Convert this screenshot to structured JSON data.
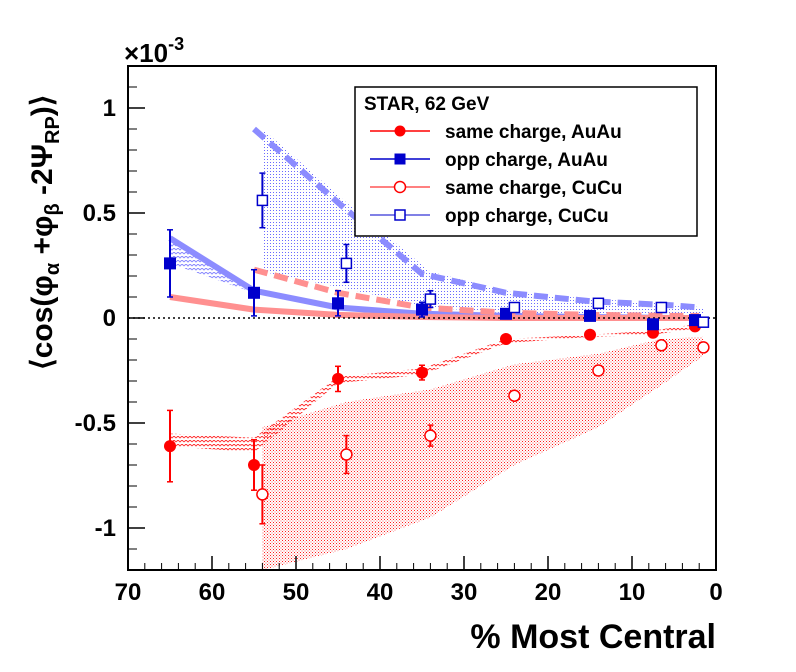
{
  "chart_data": {
    "type": "scatter",
    "title": "",
    "xlabel": "% Most Central",
    "ylabel_parts": [
      "⟨cos(φ",
      "α",
      " +φ",
      "β",
      " -2Ψ",
      "RP",
      ")⟩"
    ],
    "multiplier": "×10",
    "multiplier_exp": "-3",
    "xlim": [
      70,
      0
    ],
    "ylim": [
      -1.2,
      1.2
    ],
    "x_ticks": [
      70,
      60,
      50,
      40,
      30,
      20,
      10,
      0
    ],
    "x_tick_labels": [
      "70",
      "60",
      "50",
      "40",
      "30",
      "20",
      "10",
      "0"
    ],
    "y_ticks": [
      -1,
      -0.5,
      0,
      0.5,
      1
    ],
    "y_tick_labels": [
      "-1",
      "-0.5",
      "0",
      "0.5",
      "1"
    ],
    "legend": {
      "header": "STAR,  62 GeV",
      "entries": [
        "same charge, AuAu",
        "opp charge, AuAu",
        "same charge, CuCu",
        "opp charge, CuCu"
      ]
    },
    "colors": {
      "red": "#ff0000",
      "blue": "#0000cc",
      "light_red": "#ff9090",
      "light_blue": "#8c8cff"
    },
    "series": [
      {
        "name": "same charge, AuAu",
        "marker": "filled-circle",
        "color": "#ff0000",
        "x": [
          65,
          55,
          45,
          35,
          25,
          15,
          7.5,
          2.5
        ],
        "y": [
          -0.61,
          -0.7,
          -0.29,
          -0.26,
          -0.1,
          -0.08,
          -0.07,
          -0.04
        ],
        "err": [
          0.17,
          0.12,
          0.06,
          0.035,
          0.02,
          0.015,
          0.015,
          0.015
        ]
      },
      {
        "name": "opp charge, AuAu",
        "marker": "filled-square",
        "color": "#0000cc",
        "x": [
          65,
          55,
          45,
          35,
          25,
          15,
          7.5,
          2.5
        ],
        "y": [
          0.26,
          0.12,
          0.07,
          0.04,
          0.02,
          0.01,
          -0.03,
          -0.01
        ],
        "err": [
          0.16,
          0.11,
          0.06,
          0.035,
          0.02,
          0.015,
          0.015,
          0.015
        ]
      },
      {
        "name": "same charge, CuCu",
        "marker": "open-circle",
        "color": "#ff0000",
        "x": [
          54,
          44,
          34,
          24,
          14,
          6.5,
          1.5
        ],
        "y": [
          -0.84,
          -0.65,
          -0.56,
          -0.37,
          -0.25,
          -0.13,
          -0.14
        ],
        "err": [
          0.14,
          0.09,
          0.05,
          0.02,
          0.02,
          0.015,
          0.015
        ]
      },
      {
        "name": "opp charge, CuCu",
        "marker": "open-square",
        "color": "#0000cc",
        "x": [
          54,
          44,
          34,
          24,
          14,
          6.5,
          1.5
        ],
        "y": [
          0.56,
          0.26,
          0.09,
          0.05,
          0.07,
          0.05,
          -0.02
        ],
        "err": [
          0.13,
          0.09,
          0.04,
          0.02,
          0.02,
          0.015,
          0.015
        ]
      }
    ],
    "systematic_bands": [
      {
        "name": "AuAu opp charge band",
        "color": "#8c8cff",
        "pattern": "zigzag",
        "x": [
          65,
          55,
          45,
          35,
          25,
          15,
          7.5,
          2.5
        ],
        "upper": [
          0.38,
          0.13,
          0.06,
          0.03,
          0.02,
          0.01,
          0.005,
          0.0
        ],
        "lower": [
          0.26,
          0.12,
          0.05,
          0.02,
          0.01,
          0.005,
          0.0,
          0.0
        ]
      },
      {
        "name": "CuCu opp charge band",
        "color": "#7070ff",
        "pattern": "dots",
        "x": [
          54,
          44,
          34,
          24,
          14,
          6.5,
          1.5
        ],
        "upper": [
          0.9,
          0.55,
          0.22,
          0.12,
          0.09,
          0.07,
          0.05
        ],
        "lower": [
          0.22,
          0.14,
          0.05,
          0.02,
          0.02,
          0.02,
          0.02
        ]
      },
      {
        "name": "AuAu same charge band",
        "color": "#ff0000",
        "pattern": "zigzag",
        "x": [
          65,
          55,
          45,
          35,
          25,
          15,
          7.5,
          2.5
        ],
        "upper": [
          -0.55,
          -0.57,
          -0.28,
          -0.24,
          -0.1,
          -0.08,
          -0.06,
          -0.03
        ],
        "lower": [
          -0.61,
          -0.64,
          -0.31,
          -0.27,
          -0.12,
          -0.09,
          -0.08,
          -0.05
        ]
      },
      {
        "name": "CuCu same charge band",
        "color": "#ff3030",
        "pattern": "dots",
        "x": [
          54,
          44,
          34,
          24,
          14,
          6.5,
          1.5
        ],
        "upper": [
          -0.52,
          -0.4,
          -0.34,
          -0.22,
          -0.17,
          -0.1,
          -0.09
        ],
        "lower": [
          -1.2,
          -1.1,
          -0.95,
          -0.7,
          -0.52,
          -0.32,
          -0.18
        ]
      }
    ],
    "theory_curves": [
      {
        "name": "AuAu opp solid",
        "color": "#8c8cff",
        "style": "solid",
        "x": [
          65,
          55,
          45,
          35,
          25,
          15,
          5,
          2.5
        ],
        "y": [
          0.38,
          0.13,
          0.05,
          0.02,
          0.01,
          0.005,
          0.0,
          0.0
        ]
      },
      {
        "name": "AuAu same solid",
        "color": "#ff9090",
        "style": "solid",
        "x": [
          65,
          55,
          45,
          35,
          25,
          15,
          5,
          2.5
        ],
        "y": [
          0.1,
          0.04,
          0.015,
          0.005,
          0.0,
          0.0,
          0.0,
          0.0
        ]
      },
      {
        "name": "CuCu opp dashed",
        "color": "#8c8cff",
        "style": "dashed",
        "x": [
          55,
          45,
          35,
          25,
          15,
          5,
          2
        ],
        "y": [
          0.9,
          0.55,
          0.21,
          0.12,
          0.08,
          0.06,
          0.05
        ]
      },
      {
        "name": "CuCu same dashed",
        "color": "#ff9090",
        "style": "dashed",
        "x": [
          55,
          45,
          35,
          25,
          15,
          5,
          2
        ],
        "y": [
          0.23,
          0.12,
          0.05,
          0.025,
          0.015,
          0.01,
          0.01
        ]
      }
    ]
  }
}
